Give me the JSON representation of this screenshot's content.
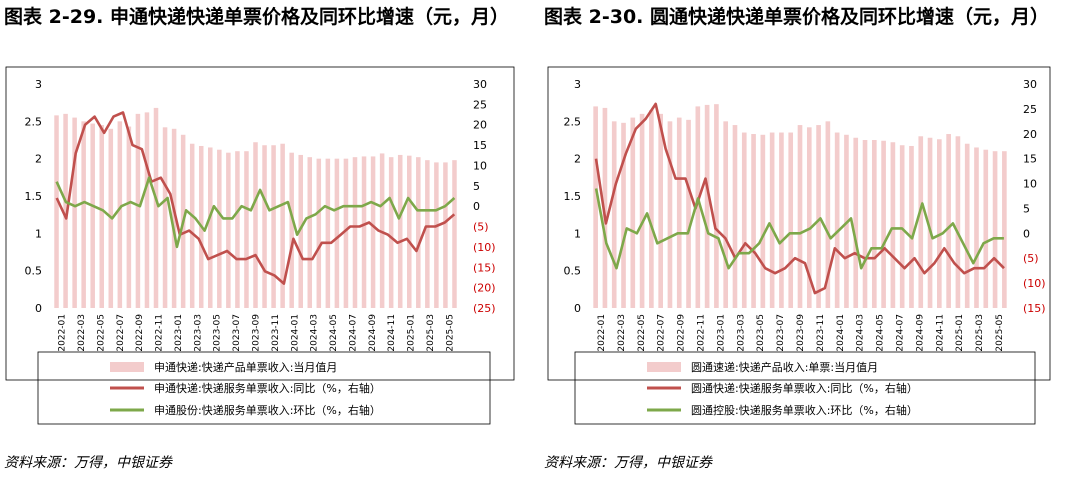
{
  "figures": [
    {
      "title": "图表 2-29. 申通快递快递单票价格及同环比增速（元，月）",
      "source": "资料来源：万得，中银证券",
      "chart_data": {
        "type": "bar",
        "x_labels": [
          "2022-01",
          "2022-03",
          "2022-05",
          "2022-07",
          "2022-09",
          "2022-11",
          "2023-01",
          "2023-03",
          "2023-05",
          "2023-07",
          "2023-09",
          "2023-11",
          "2024-01",
          "2024-03",
          "2024-05",
          "2024-07",
          "2024-09",
          "2024-11",
          "2025-01",
          "2025-03",
          "2025-05"
        ],
        "y_left": {
          "min": 0,
          "max": 3,
          "ticks": [
            "0",
            "0.5",
            "1",
            "1.5",
            "2",
            "2.5",
            "3"
          ]
        },
        "y_right": {
          "min": -25,
          "max": 30,
          "ticks": [
            "(25)",
            "(20)",
            "(15)",
            "(10)",
            "(5)",
            "0",
            "5",
            "10",
            "15",
            "20",
            "25",
            "30"
          ],
          "tick_values": [
            -25,
            -20,
            -15,
            -10,
            -5,
            0,
            5,
            10,
            15,
            20,
            25,
            30
          ],
          "negative_color": "#cc0000"
        },
        "series": [
          {
            "name": "申通快递:快递产品单票收入:当月值月",
            "type": "bar",
            "axis": "left",
            "color": "#f3cccc",
            "values": [
              2.58,
              2.6,
              2.55,
              2.5,
              2.47,
              2.45,
              2.4,
              2.5,
              2.43,
              2.6,
              2.62,
              2.68,
              2.42,
              2.4,
              2.32,
              2.2,
              2.17,
              2.15,
              2.12,
              2.08,
              2.1,
              2.1,
              2.22,
              2.18,
              2.18,
              2.2,
              2.08,
              2.05,
              2.02,
              2.0,
              2.0,
              2.0,
              2.0,
              2.02,
              2.03,
              2.03,
              2.07,
              2.02,
              2.05,
              2.04,
              2.02,
              1.98,
              1.95,
              1.95,
              1.98
            ]
          },
          {
            "name": "申通快递:快递服务单票收入:同比（%，右轴）",
            "type": "line",
            "axis": "right",
            "color": "#c0504d",
            "values": [
              2,
              -3,
              13,
              20,
              22,
              18,
              22,
              23,
              15,
              14,
              6,
              7,
              3,
              -7,
              -6,
              -8,
              -13,
              -12,
              -11,
              -13,
              -13,
              -12,
              -16,
              -17,
              -19,
              -8,
              -13,
              -13,
              -9,
              -9,
              -7,
              -5,
              -5,
              -4,
              -6,
              -7,
              -9,
              -8,
              -11,
              -5,
              -5,
              -4,
              -2
            ]
          },
          {
            "name": "申通股份:快递服务单票收入:环比（%，右轴）",
            "type": "line",
            "axis": "right",
            "color": "#7ea84a",
            "values": [
              6,
              1,
              0,
              1,
              0,
              -1,
              -3,
              0,
              1,
              0,
              7,
              0,
              2,
              -10,
              -1,
              -3,
              -6,
              0,
              -3,
              -3,
              0,
              -1,
              4,
              -1,
              0,
              1,
              -7,
              -3,
              -2,
              0,
              -1,
              0,
              0,
              0,
              1,
              0,
              2,
              -3,
              2,
              -1,
              -1,
              -1,
              0,
              2
            ]
          }
        ]
      }
    },
    {
      "title": "图表 2-30. 圆通快递快递单票价格及同环比增速（元，月）",
      "source": "资料来源：万得，中银证券",
      "chart_data": {
        "type": "bar",
        "x_labels": [
          "2022-01",
          "2022-03",
          "2022-05",
          "2022-07",
          "2022-09",
          "2022-11",
          "2023-01",
          "2023-03",
          "2023-05",
          "2023-07",
          "2023-09",
          "2023-11",
          "2024-01",
          "2024-03",
          "2024-05",
          "2024-07",
          "2024-09",
          "2024-11",
          "2025-01",
          "2025-03",
          "2025-05"
        ],
        "y_left": {
          "min": 0,
          "max": 3,
          "ticks": [
            "0",
            "0.5",
            "1",
            "1.5",
            "2",
            "2.5",
            "3"
          ]
        },
        "y_right": {
          "min": -15,
          "max": 30,
          "ticks": [
            "(15)",
            "(10)",
            "(5)",
            "0",
            "5",
            "10",
            "15",
            "20",
            "25",
            "30"
          ],
          "tick_values": [
            -15,
            -10,
            -5,
            0,
            5,
            10,
            15,
            20,
            25,
            30
          ],
          "negative_color": "#cc0000"
        },
        "series": [
          {
            "name": "圆通速递:快递产品收入:单票:当月值月",
            "type": "bar",
            "axis": "left",
            "color": "#f3cccc",
            "values": [
              2.7,
              2.68,
              2.5,
              2.48,
              2.55,
              2.6,
              2.65,
              2.6,
              2.5,
              2.55,
              2.52,
              2.7,
              2.72,
              2.73,
              2.5,
              2.45,
              2.35,
              2.33,
              2.32,
              2.35,
              2.35,
              2.35,
              2.45,
              2.42,
              2.45,
              2.5,
              2.35,
              2.32,
              2.28,
              2.25,
              2.25,
              2.24,
              2.22,
              2.18,
              2.17,
              2.3,
              2.28,
              2.26,
              2.33,
              2.3,
              2.2,
              2.15,
              2.12,
              2.1,
              2.1
            ]
          },
          {
            "name": "圆通快递:快递服务单票收入:同比（%，右轴）",
            "type": "line",
            "axis": "right",
            "color": "#c0504d",
            "values": [
              15,
              2,
              10,
              16,
              21,
              23,
              26,
              17,
              11,
              11,
              5,
              11,
              1,
              -1,
              -5,
              -2,
              -4,
              -7,
              -8,
              -7,
              -5,
              -6,
              -12,
              -11,
              -3,
              -5,
              -4,
              -5,
              -5,
              -3,
              -5,
              -7,
              -5,
              -8,
              -6,
              -3,
              -6,
              -8,
              -7,
              -7,
              -5,
              -7
            ]
          },
          {
            "name": "圆通控股:快递服务单票收入:环比（%，右轴）",
            "type": "line",
            "axis": "right",
            "color": "#7ea84a",
            "values": [
              9,
              -2,
              -7,
              1,
              0,
              4,
              -2,
              -1,
              0,
              0,
              7,
              0,
              -1,
              -7,
              -4,
              -4,
              -2,
              2,
              -2,
              0,
              0,
              1,
              3,
              -1,
              1,
              3,
              -7,
              -3,
              -3,
              1,
              1,
              -1,
              6,
              -1,
              0,
              2,
              -2,
              -6,
              -2,
              -1,
              -1
            ]
          }
        ]
      }
    }
  ]
}
